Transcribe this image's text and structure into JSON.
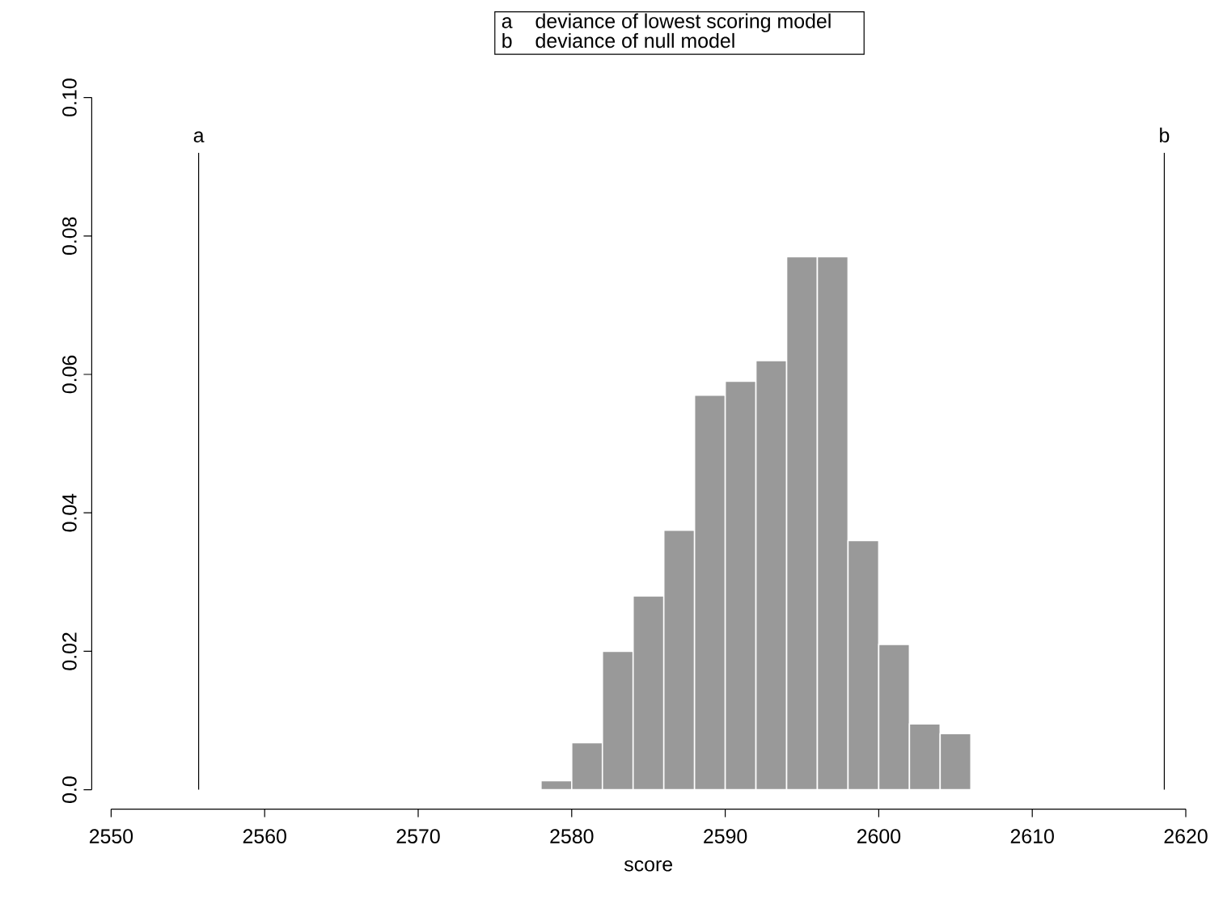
{
  "chart_data": {
    "type": "histogram",
    "xlabel": "score",
    "bins": [
      2578,
      2580,
      2582,
      2584,
      2586,
      2588,
      2590,
      2592,
      2594,
      2596,
      2598,
      2600,
      2602,
      2604,
      2606
    ],
    "values": [
      0.0013,
      0.0068,
      0.02,
      0.028,
      0.0375,
      0.057,
      0.059,
      0.062,
      0.077,
      0.077,
      0.036,
      0.021,
      0.0095,
      0.0081
    ],
    "color": "#999999",
    "xlim": [
      2550,
      2620
    ],
    "xticks": [
      2550,
      2560,
      2570,
      2580,
      2590,
      2600,
      2610,
      2620
    ],
    "ylim": [
      0,
      0.1
    ],
    "yticks": [
      {
        "value": 0,
        "label": "0.0"
      },
      0.02,
      0.04,
      0.06,
      0.08,
      {
        "value": 0.1,
        "label": "0.10"
      }
    ],
    "ref_lines": [
      {
        "axis": "x",
        "value": 2555.7,
        "label": "a",
        "color": "#000000"
      },
      {
        "axis": "x",
        "value": 2618.6,
        "label": "b",
        "color": "#000000"
      }
    ],
    "annotations": [
      "deviance of lowest scoring model",
      "deviance of null model"
    ],
    "grid": false
  }
}
